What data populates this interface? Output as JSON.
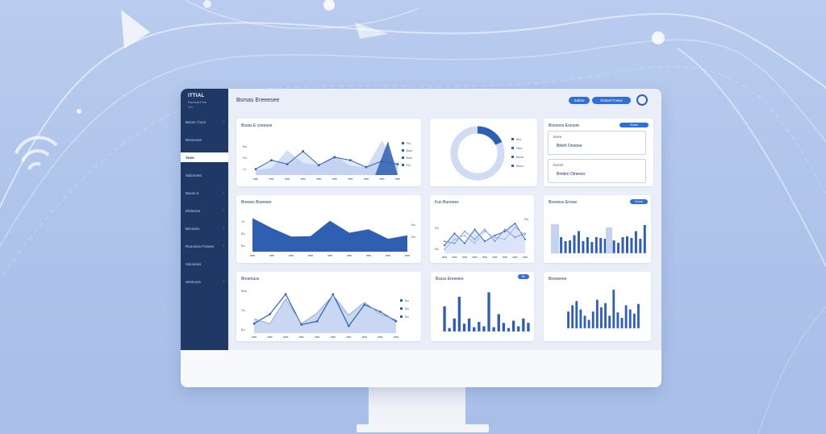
{
  "sidebar": {
    "brand_name": "ITTIAL",
    "brand_sub": "Rorecat Fom",
    "brand_meta": "Wu",
    "items": [
      {
        "label": "Bsoos I hors",
        "chevron": "›"
      },
      {
        "label": "Bnsoeuse",
        "chevron": ""
      },
      {
        "label": "Yoos",
        "chevron": "",
        "active": true
      },
      {
        "label": "Sidconest",
        "chevron": ""
      },
      {
        "label": "Bsoos d",
        "chevron": "›"
      },
      {
        "label": "Ehtinvies",
        "chevron": "›"
      },
      {
        "label": "Bsnoses",
        "chevron": "›"
      },
      {
        "label": "Rooonies Fonees",
        "chevron": "›"
      },
      {
        "label": "Ssioncies",
        "chevron": ""
      },
      {
        "label": "Sentooss",
        "chevron": "›"
      }
    ]
  },
  "header": {
    "title": "Bsmas Ereeesee",
    "button_1": "Sabne",
    "button_2": "Sosnet Foase"
  },
  "cards": {
    "area_line": {
      "title": "Bsoss E cneesse",
      "y_ticks": [
        "Bo",
        "So",
        "Lo"
      ],
      "legend": [
        "Sn",
        "Boe",
        "Boe",
        "Ro"
      ]
    },
    "donut": {
      "legend": [
        "Bro",
        "Sisn",
        "Bsoe",
        "Bsso"
      ]
    },
    "summary": {
      "title": "Bnsooss Ersoore",
      "pill": "Bnoet",
      "box_1_label": "Exee",
      "box_1_value": "Biiteh Ononee",
      "box_2_label": "Exese",
      "box_2_value": "Bmiten Oinenes"
    },
    "area_chart": {
      "title": "Bnsoes Bsooees",
      "y_ticks": [
        "Yo",
        "Bo",
        "Bo"
      ],
      "y_right_ticks": [
        "Bo",
        "Bo"
      ]
    },
    "multi_line": {
      "title": "Fun Bunooes",
      "y_ticks": [
        "Ro",
        "Bo"
      ],
      "legend": [
        "Ro"
      ]
    },
    "bar_chart_1": {
      "title": "Bnsoeus Eroow",
      "pill": "Bnoet"
    },
    "line_area_2": {
      "title": "Bnoenuss",
      "y_ticks": [
        "Bao",
        "So",
        "Bo"
      ],
      "legend": [
        "Bo",
        "Bo",
        "Bo"
      ]
    },
    "bar_chart_2": {
      "title": "Bxsss Ereeeies",
      "pill": "Bn"
    },
    "bar_chart_3": {
      "title": "Bnsoeeee"
    }
  },
  "colors": {
    "sidebar": "#1f3866",
    "accent": "#2f6fd6",
    "series_dark": "#2f5fb0",
    "series_light": "#c3d3f1"
  },
  "chart_data": [
    {
      "type": "area",
      "title": "Bsoss E cneesse",
      "series": [
        {
          "values": [
            10,
            14,
            50,
            24,
            21,
            40,
            19,
            15,
            70,
            18
          ]
        },
        {
          "values": [
            12,
            30,
            22,
            48,
            20,
            36,
            30,
            16,
            28,
            22
          ]
        }
      ]
    },
    {
      "type": "pie",
      "values": [
        18,
        82
      ]
    },
    {
      "type": "area",
      "title": "Bnsoes Bsooees",
      "series": [
        {
          "values": [
            78,
            55,
            35,
            36,
            72,
            44,
            52,
            30,
            38
          ]
        }
      ]
    },
    {
      "type": "line",
      "title": "Fun Bunooes",
      "series": [
        {
          "values": [
            20,
            50,
            25,
            60,
            30,
            45,
            55,
            75,
            35
          ]
        },
        {
          "values": [
            30,
            25,
            55,
            35,
            60,
            30,
            60,
            40,
            50
          ]
        },
        {
          "values": [
            10,
            35,
            45,
            25,
            55,
            40,
            35,
            65,
            45
          ]
        }
      ]
    },
    {
      "type": "bar",
      "title": "Bnsoeus Eroow",
      "values": [
        60,
        45,
        40,
        30,
        32,
        45,
        55,
        30,
        40,
        28,
        40,
        38,
        36,
        42,
        32,
        26,
        40,
        42,
        38,
        55,
        36,
        70
      ]
    },
    {
      "type": "line",
      "title": "Bnoenuss",
      "series": [
        {
          "values": [
            30,
            20,
            72,
            20,
            42,
            80,
            38,
            65,
            40,
            28
          ]
        },
        {
          "values": [
            20,
            40,
            82,
            18,
            25,
            82,
            15,
            60,
            45,
            25
          ]
        }
      ]
    },
    {
      "type": "bar",
      "title": "Bxsss Ereeeies",
      "values": [
        58,
        8,
        30,
        80,
        18,
        30,
        10,
        22,
        12,
        90,
        10,
        40,
        20,
        8,
        25,
        12,
        30,
        20
      ]
    },
    {
      "type": "bar",
      "title": "Bnsoeeee",
      "values": [
        40,
        55,
        65,
        45,
        30,
        20,
        40,
        68,
        50,
        60,
        30,
        92,
        38,
        25,
        55,
        45,
        35,
        58
      ]
    }
  ]
}
